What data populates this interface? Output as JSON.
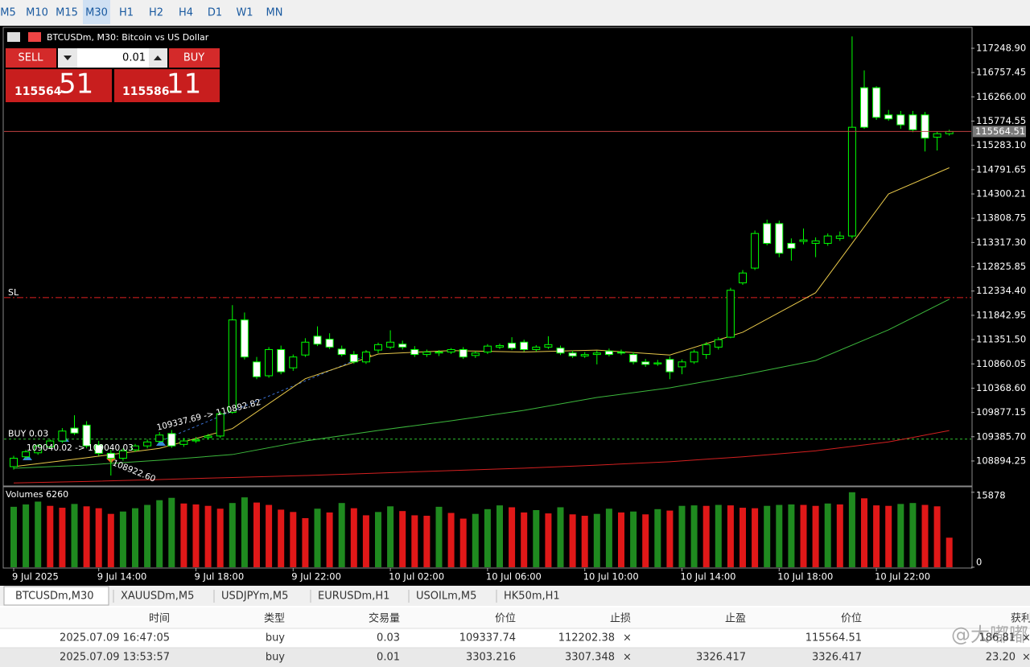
{
  "toolbar": {
    "timeframes": [
      "M5",
      "M10",
      "M15",
      "M30",
      "H1",
      "H2",
      "H4",
      "D1",
      "W1",
      "MN"
    ],
    "active": "M30"
  },
  "trade_panel": {
    "sell": "SELL",
    "buy": "BUY",
    "lot": "0.01",
    "bid_main": "115564",
    "bid_big": "51",
    "ask_main": "115586",
    "ask_big": "11"
  },
  "tabs": [
    "BTCUSDm,M30",
    "XAUUSDm,M5",
    "USDJPYm,M5",
    "EURUSDm,H1",
    "USOILm,M5",
    "HK50m,H1"
  ],
  "table": {
    "headers": [
      "时间",
      "类型",
      "交易量",
      "价位",
      "止损",
      "止盈",
      "价位",
      "获利"
    ],
    "rows": [
      [
        "2025.07.09 16:47:05",
        "buy",
        "0.03",
        "109337.74",
        "112202.38",
        "",
        "115564.51",
        "186.81"
      ],
      [
        "2025.07.09 13:53:57",
        "buy",
        "0.01",
        "3303.216",
        "3307.348",
        "3326.417",
        "3326.417",
        "23.20"
      ]
    ]
  },
  "watermark": "@大嘟嘟",
  "chart_data": [
    {
      "type": "candlestick",
      "title": "BTCUSDm, M30:  Bitcoin vs US Dollar",
      "categories": [
        "9 Jul 2025",
        null,
        null,
        null,
        null,
        null,
        null,
        "9 Jul 14:00",
        null,
        null,
        null,
        null,
        null,
        null,
        null,
        "9 Jul 18:00",
        null,
        null,
        null,
        null,
        null,
        null,
        null,
        "9 Jul 22:00",
        null,
        null,
        null,
        null,
        null,
        null,
        null,
        "10 Jul 02:00",
        null,
        null,
        null,
        null,
        null,
        null,
        null,
        "10 Jul 06:00",
        null,
        null,
        null,
        null,
        null,
        null,
        null,
        "10 Jul 10:00",
        null,
        null,
        null,
        null,
        null,
        null,
        null,
        "10 Jul 14:00",
        null,
        null,
        null,
        null,
        null,
        null,
        null,
        "10 Jul 18:00",
        null,
        null,
        null,
        null,
        null,
        null,
        null,
        "10 Jul 22:00",
        null,
        null,
        null,
        null,
        null,
        null
      ],
      "ohlc": [
        [
          108780,
          109000,
          108720,
          108950
        ],
        [
          108980,
          109120,
          108940,
          109080
        ],
        [
          109060,
          109230,
          109020,
          109200
        ],
        [
          109180,
          109330,
          109150,
          109300
        ],
        [
          109300,
          109560,
          109260,
          109500
        ],
        [
          109560,
          109820,
          109420,
          109460
        ],
        [
          109620,
          109700,
          109150,
          109200
        ],
        [
          109220,
          109300,
          109000,
          109050
        ],
        [
          109050,
          109120,
          108600,
          108950
        ],
        [
          108950,
          109150,
          108900,
          109100
        ],
        [
          109120,
          109240,
          109080,
          109200
        ],
        [
          109200,
          109330,
          109150,
          109280
        ],
        [
          109290,
          109480,
          109260,
          109420
        ],
        [
          109450,
          109520,
          109160,
          109200
        ],
        [
          109230,
          109360,
          109180,
          109300
        ],
        [
          109300,
          109380,
          109260,
          109320
        ],
        [
          109370,
          109440,
          109330,
          109400
        ],
        [
          109400,
          109900,
          109360,
          109850
        ],
        [
          109880,
          112050,
          109850,
          111750
        ],
        [
          111750,
          111900,
          110950,
          111000
        ],
        [
          110900,
          111000,
          110550,
          110600
        ],
        [
          110620,
          111200,
          110580,
          111150
        ],
        [
          111150,
          111230,
          110650,
          110700
        ],
        [
          110780,
          111050,
          110720,
          111000
        ],
        [
          111040,
          111380,
          111000,
          111300
        ],
        [
          111420,
          111620,
          111220,
          111260
        ],
        [
          111360,
          111480,
          111160,
          111200
        ],
        [
          111160,
          111230,
          111010,
          111050
        ],
        [
          111050,
          111120,
          110860,
          110900
        ],
        [
          110900,
          111140,
          110860,
          111100
        ],
        [
          111140,
          111290,
          111080,
          111250
        ],
        [
          111200,
          111540,
          111160,
          111300
        ],
        [
          111260,
          111330,
          111150,
          111200
        ],
        [
          111150,
          111220,
          111000,
          111050
        ],
        [
          111050,
          111150,
          111000,
          111100
        ],
        [
          111080,
          111140,
          111020,
          111100
        ],
        [
          111100,
          111180,
          111060,
          111150
        ],
        [
          111150,
          111200,
          110960,
          111000
        ],
        [
          111030,
          111120,
          110980,
          111080
        ],
        [
          111100,
          111260,
          111060,
          111220
        ],
        [
          111200,
          111270,
          111160,
          111230
        ],
        [
          111280,
          111400,
          111140,
          111180
        ],
        [
          111300,
          111350,
          111110,
          111150
        ],
        [
          111150,
          111240,
          111110,
          111200
        ],
        [
          111200,
          111420,
          111160,
          111250
        ],
        [
          111180,
          111230,
          111040,
          111080
        ],
        [
          111080,
          111130,
          110980,
          111020
        ],
        [
          111020,
          111100,
          110980,
          111050
        ],
        [
          111050,
          111130,
          110850,
          111080
        ],
        [
          111120,
          111170,
          111010,
          111050
        ],
        [
          111100,
          111150,
          111040,
          111080
        ],
        [
          111050,
          111100,
          110850,
          110900
        ],
        [
          110900,
          110960,
          110800,
          110850
        ],
        [
          110860,
          110940,
          110820,
          110880
        ],
        [
          110950,
          111010,
          110550,
          110700
        ],
        [
          110800,
          110950,
          110650,
          110900
        ],
        [
          110900,
          111150,
          110860,
          111100
        ],
        [
          111050,
          111300,
          110960,
          111250
        ],
        [
          111200,
          111400,
          111150,
          111350
        ],
        [
          111400,
          112400,
          111380,
          112350
        ],
        [
          112500,
          112760,
          112460,
          112700
        ],
        [
          112800,
          113560,
          112760,
          113500
        ],
        [
          113700,
          113780,
          113260,
          113300
        ],
        [
          113700,
          113760,
          113020,
          113100
        ],
        [
          113300,
          113400,
          112950,
          113200
        ],
        [
          113340,
          113600,
          113280,
          113370
        ],
        [
          113300,
          113420,
          113020,
          113350
        ],
        [
          113300,
          113500,
          113250,
          113450
        ],
        [
          113400,
          113540,
          113350,
          113450
        ],
        [
          113450,
          117490,
          113400,
          115650
        ],
        [
          116450,
          116800,
          115620,
          115650
        ],
        [
          116450,
          116480,
          115800,
          115850
        ],
        [
          115900,
          116000,
          115780,
          115820
        ],
        [
          115900,
          115980,
          115620,
          115700
        ],
        [
          115900,
          115980,
          115550,
          115600
        ],
        [
          115900,
          115960,
          115160,
          115430
        ],
        [
          115450,
          115560,
          115180,
          115520
        ],
        [
          115520,
          115600,
          115480,
          115564.51
        ]
      ],
      "up_fill": "#000000",
      "down_fill": "#ffffff",
      "candle_stroke": "#00ff00",
      "ylim": [
        108405,
        117656
      ],
      "yticks": [
        {
          "value": 117248.9,
          "label": "117248.90"
        },
        116757.45,
        {
          "value": 116266,
          "label": "116266.00"
        },
        115774.55,
        {
          "value": 115283.1,
          "label": "115283.10"
        },
        114791.65,
        114300.21,
        113808.75,
        {
          "value": 113317.3,
          "label": "113317.30"
        },
        112825.85,
        {
          "value": 112334.4,
          "label": "112334.40"
        },
        111842.95,
        {
          "value": 111351.5,
          "label": "111351.50"
        },
        110860.05,
        {
          "value": 110368.6,
          "label": "110368.60"
        },
        109877.15,
        {
          "value": 109385.7,
          "label": "109385.70"
        },
        108894.25
      ],
      "series": [
        {
          "color": "#e8c84a",
          "x": [
            0,
            6,
            12,
            18,
            24,
            30,
            36,
            42,
            48,
            54,
            60,
            66,
            72,
            77
          ],
          "values": [
            108780,
            108960,
            109150,
            109550,
            110560,
            111060,
            111130,
            111100,
            111140,
            111040,
            111500,
            112300,
            114300,
            114830
          ]
        },
        {
          "color": "#3cb83c",
          "x": [
            0,
            6,
            12,
            18,
            24,
            30,
            36,
            42,
            48,
            54,
            60,
            66,
            72,
            77
          ],
          "values": [
            108748,
            108813,
            108910,
            109025,
            109300,
            109513,
            109708,
            109920,
            110180,
            110376,
            110637,
            110930,
            111549,
            112169
          ]
        },
        {
          "color": "#d42020",
          "x": [
            0,
            6,
            12,
            18,
            24,
            30,
            36,
            42,
            48,
            54,
            60,
            66,
            72,
            77
          ],
          "values": [
            108450,
            108480,
            108520,
            108560,
            108600,
            108650,
            108700,
            108750,
            108810,
            108880,
            108980,
            109100,
            109280,
            109510
          ]
        }
      ],
      "levels": [
        {
          "label": "SL",
          "value": 112202.38,
          "color": "#e02020",
          "dash": "8 3 2 3"
        },
        {
          "label": "BUY 0.03",
          "value": 109337.74,
          "color": "#30c030",
          "dash": "3 3"
        }
      ],
      "current_price": 115564.51,
      "current_color": "#c04040",
      "annotations": [
        "109040.02 -> 109040.03",
        "109337.69 -> 110892.82",
        "108922.60"
      ]
    },
    {
      "type": "bar",
      "title": "Volumes 6260",
      "values": [
        12800,
        13300,
        13900,
        13000,
        12600,
        13400,
        12900,
        12500,
        11300,
        11800,
        12500,
        13200,
        14200,
        14700,
        13500,
        13300,
        13000,
        12400,
        13600,
        14800,
        13700,
        13200,
        12200,
        11700,
        10400,
        12400,
        11600,
        13600,
        12500,
        11000,
        11700,
        12900,
        11900,
        11000,
        10900,
        12800,
        11500,
        10300,
        11300,
        12300,
        13100,
        12700,
        11600,
        12100,
        11400,
        12700,
        11200,
        10900,
        11300,
        12400,
        11600,
        11800,
        11200,
        12300,
        12000,
        13000,
        13100,
        13000,
        13200,
        13100,
        12600,
        12500,
        13000,
        13200,
        13300,
        13200,
        13000,
        13500,
        13300,
        15878,
        14600,
        13100,
        13000,
        13400,
        13600,
        13200,
        12900,
        6260
      ],
      "up_color": "#1f8a1f",
      "down_color": "#e01818",
      "ylim": [
        0,
        16700
      ],
      "yticks": [
        0,
        15878
      ]
    }
  ]
}
